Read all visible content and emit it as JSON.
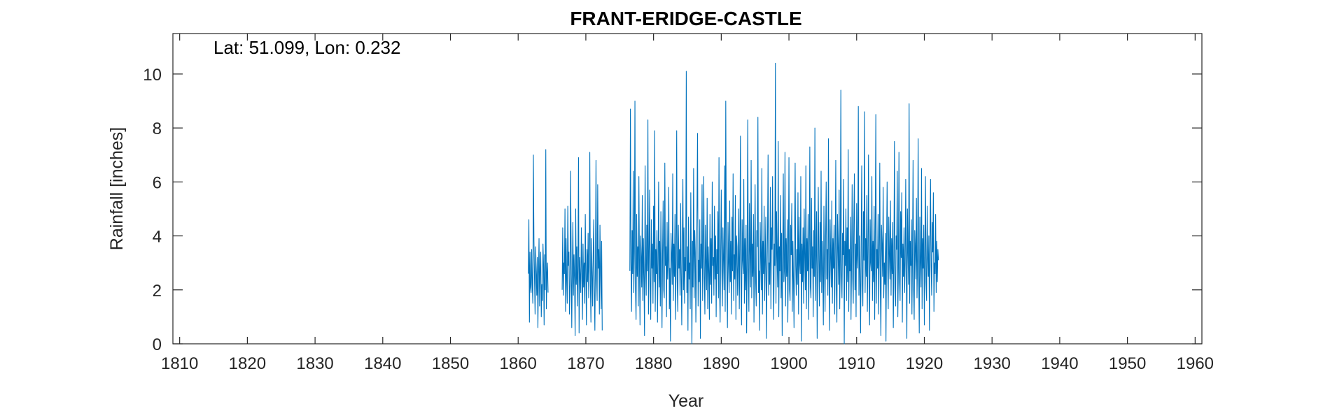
{
  "chart_data": {
    "type": "line",
    "title": "FRANT-ERIDGE-CASTLE",
    "xlabel": "Year",
    "ylabel": "Rainfall [inches]",
    "annotation": "Lat: 51.099, Lon: 0.232",
    "xlim": [
      1809,
      1961
    ],
    "ylim": [
      0,
      11.5
    ],
    "x_ticks": [
      1810,
      1820,
      1830,
      1840,
      1850,
      1860,
      1870,
      1880,
      1890,
      1900,
      1910,
      1920,
      1930,
      1940,
      1950,
      1960
    ],
    "y_ticks": [
      0,
      2,
      4,
      6,
      8,
      10
    ],
    "grid": false,
    "line_color": "#0072BD",
    "series": [
      {
        "resolution": "monthly",
        "segments": [
          {
            "start": 1861.5,
            "values": [
              2.6,
              4.6,
              0.8,
              3.4,
              2.1,
              1.9,
              3.5,
              2.2,
              1.5,
              7.0,
              3.8,
              2.4,
              1.1,
              3.6,
              2.7,
              1.8,
              3.2,
              0.6,
              2.5,
              3.9,
              1.4,
              2.8,
              3.4,
              1.0,
              2.2,
              1.6,
              3.7,
              2.9,
              0.7,
              3.3,
              2.0,
              7.2,
              1.3,
              2.6,
              3.0,
              1.9
            ]
          },
          {
            "start": 1866.5,
            "values": [
              2.0,
              4.3,
              1.8,
              3.0,
              2.6,
              5.0,
              1.2,
              3.9,
              2.4,
              1.5,
              5.1,
              2.9,
              3.4,
              1.1,
              2.2,
              6.4,
              3.1,
              0.6,
              2.7,
              4.5,
              1.8,
              3.3,
              2.4,
              0.3,
              5.0,
              2.2,
              3.6,
              1.4,
              2.9,
              6.9,
              0.4,
              3.2,
              2.5,
              1.9,
              4.3,
              2.8,
              0.9,
              3.7,
              2.1,
              3.0,
              1.5,
              4.8,
              2.6,
              0.7,
              3.5,
              2.3,
              4.1,
              1.7,
              3.0,
              7.1,
              2.2,
              0.8,
              3.9,
              2.6,
              1.4,
              3.3,
              4.6,
              2.0,
              0.5,
              3.1,
              6.8,
              2.4,
              1.6,
              5.9,
              2.8,
              3.5,
              1.1,
              4.4,
              2.7,
              1.3,
              3.8,
              0.5
            ]
          },
          {
            "start": 1876.5,
            "values": [
              2.7,
              8.7,
              3.1,
              1.2,
              4.2,
              2.6,
              6.4,
              1.9,
              3.4,
              9.0,
              2.0,
              0.9,
              4.8,
              2.5,
              3.6,
              1.4,
              6.2,
              2.9,
              0.7,
              4.0,
              3.2,
              2.1,
              5.5,
              1.6,
              3.9,
              2.4,
              0.3,
              6.6,
              3.0,
              1.8,
              4.4,
              2.7,
              8.3,
              1.1,
              3.3,
              5.7,
              2.2,
              0.9,
              4.6,
              2.8,
              3.7,
              1.5,
              5.1,
              2.3,
              7.9,
              1.2,
              3.5,
              2.6,
              4.2,
              0.8,
              3.0,
              6.0,
              2.1,
              3.8,
              1.4,
              4.9,
              2.7,
              0.6,
              3.4,
              5.3,
              2.0,
              1.7,
              6.7,
              2.9,
              3.6,
              1.0,
              4.5,
              2.4,
              3.1,
              5.8,
              1.3,
              2.8,
              0.1,
              4.1,
              3.3,
              2.2,
              6.3,
              1.6,
              3.7,
              2.5,
              4.8,
              0.9,
              3.0,
              7.9,
              2.3,
              1.2,
              4.4,
              2.8,
              3.5,
              1.8,
              5.2,
              2.6,
              0.7,
              3.9,
              6.1,
              2.0,
              4.3,
              1.5,
              3.2,
              2.7,
              10.1,
              1.9,
              3.6,
              0.5,
              4.7,
              2.4,
              3.0,
              1.3,
              5.6,
              2.9,
              0.0,
              3.8,
              2.1,
              6.5,
              1.7,
              4.2,
              3.4,
              0.8,
              2.6,
              5.0,
              7.8,
              1.4,
              3.1,
              2.3,
              4.6,
              0.2,
              3.7,
              2.8,
              5.9,
              1.6,
              3.3,
              6.2,
              2.5,
              1.1,
              4.4,
              3.0,
              2.0,
              5.4,
              1.3,
              3.6,
              2.7,
              0.9,
              4.8,
              2.2,
              3.9,
              1.5,
              6.0,
              2.9,
              3.2,
              1.8,
              5.1,
              2.4,
              4.0,
              1.0,
              3.5,
              2.6,
              4.9,
              1.7,
              6.9,
              2.1,
              0.8,
              3.4,
              5.7,
              2.8,
              1.4,
              4.3,
              3.1,
              2.0,
              6.6,
              1.2,
              9.0,
              3.7,
              2.5,
              0.6,
              4.5,
              3.0,
              1.9,
              5.3,
              2.3,
              3.8,
              1.1,
              4.7,
              2.7,
              6.3,
              1.6,
              3.3,
              2.4,
              5.5,
              0.9,
              4.0,
              3.6,
              1.8,
              2.9,
              5.0,
              1.3,
              3.5,
              7.7,
              2.2,
              0.7,
              4.6,
              3.1,
              2.6,
              6.1,
              1.5,
              3.9,
              2.0,
              4.4,
              0.4,
              3.2,
              8.3,
              2.8,
              1.2,
              5.2,
              3.4,
              2.1,
              6.8,
              1.7,
              3.7,
              2.5,
              4.8,
              0.8,
              3.0,
              5.9,
              2.3,
              1.4,
              4.2,
              3.6,
              8.4,
              1.9,
              2.7,
              0.5,
              4.5,
              3.3,
              2.0,
              6.5,
              1.1,
              3.8,
              2.6,
              5.1,
              1.6,
              3.1,
              4.7,
              0.2,
              2.4,
              3.9,
              7.0,
              1.8,
              3.0,
              2.2,
              5.8,
              1.3,
              4.3,
              3.5,
              6.2,
              2.6,
              0.9,
              3.7,
              2.9,
              10.4,
              1.5,
              4.9,
              3.2,
              2.1,
              7.5,
              1.0,
              3.6,
              2.7,
              5.5,
              1.7,
              4.1,
              0.3,
              3.4,
              6.3,
              2.3,
              2.8,
              7.1,
              1.4,
              3.9,
              2.5,
              4.6,
              0.8,
              3.1,
              6.9,
              2.0,
              1.6,
              4.4,
              3.3,
              5.2,
              1.2,
              3.8,
              2.4,
              0.6,
              4.0,
              6.7,
              2.9,
              1.8,
              3.5,
              2.2,
              5.6,
              1.1,
              4.7,
              3.0,
              2.6,
              6.2,
              0.1,
              3.7,
              2.3,
              4.3,
              1.5,
              5.0,
              3.2,
              2.0,
              6.6,
              1.3,
              3.9,
              2.7,
              4.8,
              0.9,
              3.4,
              7.3,
              2.1,
              1.7,
              5.4,
              2.8,
              3.6,
              1.0,
              4.2,
              2.5,
              8.0,
              1.6,
              3.3,
              4.9,
              0.2,
              2.9,
              5.8,
              3.1,
              1.4,
              4.5,
              2.3,
              6.4,
              1.9,
              3.8,
              2.6,
              0.7,
              5.1,
              3.0,
              1.2,
              4.0,
              6.0,
              2.4,
              3.5,
              1.8,
              7.6,
              2.7,
              0.5,
              4.6,
              3.2,
              2.1,
              5.3,
              1.5,
              3.9,
              2.8,
              4.4,
              1.1,
              3.4,
              6.8,
              2.0,
              0.8,
              4.8,
              3.6,
              2.2,
              5.7,
              1.3,
              3.1,
              9.4,
              2.5,
              1.7,
              4.1,
              3.3,
              6.1,
              0.0,
              3.8,
              2.9,
              5.0,
              1.6,
              4.3,
              2.3,
              7.2,
              1.2,
              3.5,
              2.7,
              4.7,
              0.9,
              3.0,
              5.9,
              2.4,
              1.5,
              4.5,
              6.3,
              2.0,
              3.7,
              1.0,
              5.2,
              2.8,
              3.3,
              8.8,
              1.8,
              4.0,
              2.6,
              0.4,
              3.6,
              6.6,
              2.2,
              1.4,
              4.9,
              3.1,
              8.6,
              1.9,
              3.9,
              2.5,
              5.5,
              1.2,
              3.4,
              7.0,
              2.1,
              0.7,
              4.6,
              3.0,
              2.7,
              6.2,
              1.6,
              3.8,
              2.3,
              5.1,
              0.9,
              4.2,
              8.5,
              1.5,
              3.5,
              2.8,
              4.8,
              1.1,
              3.2,
              6.7,
              2.0,
              0.3,
              4.4,
              3.7,
              2.5,
              5.8,
              1.7,
              3.0,
              2.2,
              4.1,
              0.1,
              3.6,
              6.0,
              2.9,
              1.3,
              4.7,
              3.3,
              2.4,
              5.3,
              1.8,
              3.9,
              2.6,
              4.5,
              0.6,
              3.1,
              7.5,
              2.1,
              1.4,
              4.0,
              3.5,
              6.4,
              1.0,
              2.8,
              7.1,
              2.3,
              1.6,
              4.9,
              3.2,
              5.6,
              0.8,
              3.7,
              2.5,
              4.3,
              1.9,
              3.0,
              6.1,
              2.7,
              0.2,
              5.0,
              3.4,
              2.2,
              8.9,
              1.5,
              3.8,
              2.9,
              4.6,
              1.1,
              3.3,
              6.8,
              2.0,
              0.9,
              4.2,
              3.6,
              2.4,
              5.4,
              1.7,
              3.1,
              7.6,
              2.6,
              0.4,
              4.7,
              3.0,
              2.1,
              6.5,
              1.3,
              3.9,
              2.8,
              4.4,
              0.7,
              3.5,
              6.2,
              2.3,
              1.6,
              5.1,
              3.2,
              2.5,
              4.0,
              0.5,
              3.7,
              6.1,
              2.9,
              1.8,
              4.5,
              3.4,
              5.6,
              1.2,
              3.0,
              2.6,
              4.8,
              1.9,
              3.8,
              2.3,
              3.5,
              3.1
            ]
          }
        ]
      }
    ]
  }
}
